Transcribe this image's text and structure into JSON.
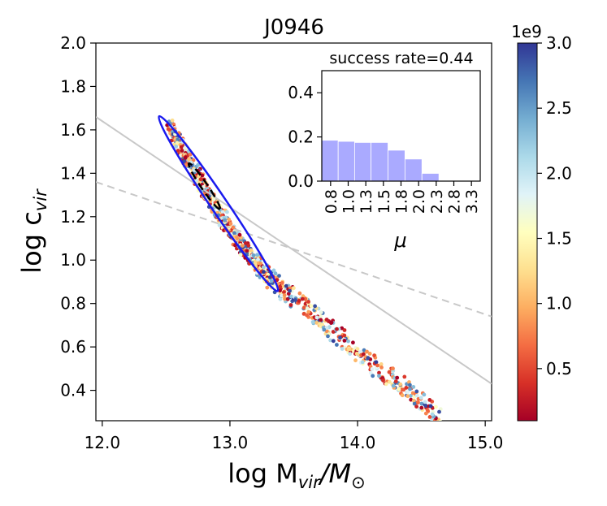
{
  "chart_data": [
    {
      "type": "scatter",
      "title": "J0946",
      "xlabel": "log  M",
      "xlabel_sub": "vir",
      "xlabel_tail": "/M",
      "xlabel_tail_sub": "⊙",
      "ylabel": "log  c",
      "ylabel_sub": "vir",
      "xlim": [
        11.95,
        15.05
      ],
      "ylim": [
        0.26,
        2.0
      ],
      "xticks": [
        12.0,
        13.0,
        14.0,
        15.0
      ],
      "xtick_labels": [
        "12.0",
        "13.0",
        "14.0",
        "15.0"
      ],
      "yticks": [
        0.4,
        0.6,
        0.8,
        1.0,
        1.2,
        1.4,
        1.6,
        1.8,
        2.0
      ],
      "ytick_labels": [
        "0.4",
        "0.6",
        "0.8",
        "1.0",
        "1.2",
        "1.4",
        "1.6",
        "1.8",
        "2.0"
      ],
      "series": [
        {
          "name": "scatter_points",
          "note": "color mapped by colorbar value",
          "x": [
            12.52,
            12.56,
            12.6,
            12.63,
            12.66,
            12.7,
            12.74,
            12.78,
            12.82,
            12.86,
            12.9,
            12.94,
            12.98,
            13.02,
            13.06,
            13.1,
            13.14,
            13.18,
            13.22,
            13.26,
            13.3,
            13.34,
            13.38,
            13.42,
            13.46,
            13.5,
            13.55,
            13.6,
            13.65,
            13.7,
            13.75,
            13.8,
            13.86,
            13.92,
            13.98,
            14.04,
            14.1,
            14.16,
            14.22,
            14.28,
            14.34,
            14.4,
            14.46,
            14.52,
            14.58,
            14.64
          ],
          "y": [
            1.62,
            1.58,
            1.55,
            1.5,
            1.47,
            1.43,
            1.39,
            1.35,
            1.31,
            1.27,
            1.23,
            1.2,
            1.16,
            1.12,
            1.09,
            1.06,
            1.03,
            1.0,
            0.98,
            0.95,
            0.93,
            0.9,
            0.88,
            0.86,
            0.84,
            0.82,
            0.8,
            0.77,
            0.75,
            0.72,
            0.7,
            0.67,
            0.64,
            0.61,
            0.58,
            0.55,
            0.53,
            0.5,
            0.47,
            0.45,
            0.42,
            0.39,
            0.36,
            0.34,
            0.31,
            0.28
          ]
        },
        {
          "name": "solid_grey_line",
          "x": [
            11.95,
            15.05
          ],
          "y": [
            1.66,
            0.43
          ]
        },
        {
          "name": "dashed_grey_line",
          "x": [
            11.95,
            15.05
          ],
          "y": [
            1.36,
            0.74
          ]
        },
        {
          "name": "blue_contour",
          "center": [
            12.91,
            1.26
          ],
          "note": "confidence ellipse"
        },
        {
          "name": "black_dashed_contour",
          "center": [
            12.8,
            1.34
          ]
        }
      ],
      "colorbar": {
        "min": 0.1,
        "max": 3.0,
        "offset_label": "1e9",
        "ticks": [
          0.5,
          1.0,
          1.5,
          2.0,
          2.5,
          3.0
        ],
        "tick_labels": [
          "0.5",
          "1.0",
          "1.5",
          "2.0",
          "2.5",
          "3.0"
        ],
        "colormap": "RdYlBu"
      }
    },
    {
      "type": "bar",
      "title": "success rate=0.44",
      "xlabel": "μ",
      "ylim": [
        0.0,
        0.5
      ],
      "yticks": [
        0.0,
        0.2,
        0.4
      ],
      "ytick_labels": [
        "0.0",
        "0.2",
        "0.4"
      ],
      "xlim": [
        0.65,
        3.45
      ],
      "xticks": [
        0.8,
        1.0,
        1.3,
        1.5,
        1.8,
        2.0,
        2.3,
        2.8,
        3.3
      ],
      "xtick_labels": [
        "0.8",
        "1.0",
        "1.3",
        "1.5",
        "1.8",
        "2.0",
        "2.3",
        "2.8",
        "3.3"
      ],
      "bin_edges": [
        0.65,
        0.94,
        1.23,
        1.52,
        1.82,
        2.12,
        2.42,
        2.72
      ],
      "values": [
        0.185,
        0.18,
        0.175,
        0.175,
        0.14,
        0.1,
        0.035
      ],
      "bar_color": "#aaaaff"
    }
  ]
}
